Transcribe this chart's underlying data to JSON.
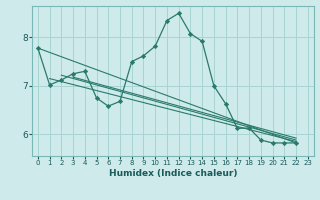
{
  "xlabel": "Humidex (Indice chaleur)",
  "bg_color": "#ceeaea",
  "grid_color": "#a8d4d4",
  "line_color": "#2a7a6a",
  "xlim": [
    -0.5,
    23.5
  ],
  "ylim": [
    5.55,
    8.65
  ],
  "yticks": [
    6,
    7,
    8
  ],
  "xticks": [
    0,
    1,
    2,
    3,
    4,
    5,
    6,
    7,
    8,
    9,
    10,
    11,
    12,
    13,
    14,
    15,
    16,
    17,
    18,
    19,
    20,
    21,
    22,
    23
  ],
  "series1_x": [
    0,
    1,
    2,
    3,
    4,
    5,
    6,
    7,
    8,
    9,
    10,
    11,
    12,
    13,
    14,
    15,
    16,
    17,
    18,
    19,
    20,
    21,
    22
  ],
  "series1_y": [
    7.78,
    7.02,
    7.12,
    7.25,
    7.3,
    6.75,
    6.58,
    6.68,
    7.5,
    7.62,
    7.82,
    8.35,
    8.5,
    8.08,
    7.92,
    7.0,
    6.63,
    6.12,
    6.13,
    5.88,
    5.82,
    5.82,
    5.82
  ],
  "line_fits": [
    {
      "x0": 0,
      "y0": 7.78,
      "x1": 22,
      "y1": 5.82
    },
    {
      "x0": 1,
      "y0": 7.15,
      "x1": 22,
      "y1": 5.85
    },
    {
      "x0": 2,
      "y0": 7.22,
      "x1": 22,
      "y1": 5.88
    },
    {
      "x0": 3,
      "y0": 7.18,
      "x1": 22,
      "y1": 5.92
    }
  ],
  "xlabel_fontsize": 6.5,
  "tick_fontsize_x": 5.0,
  "tick_fontsize_y": 6.5
}
